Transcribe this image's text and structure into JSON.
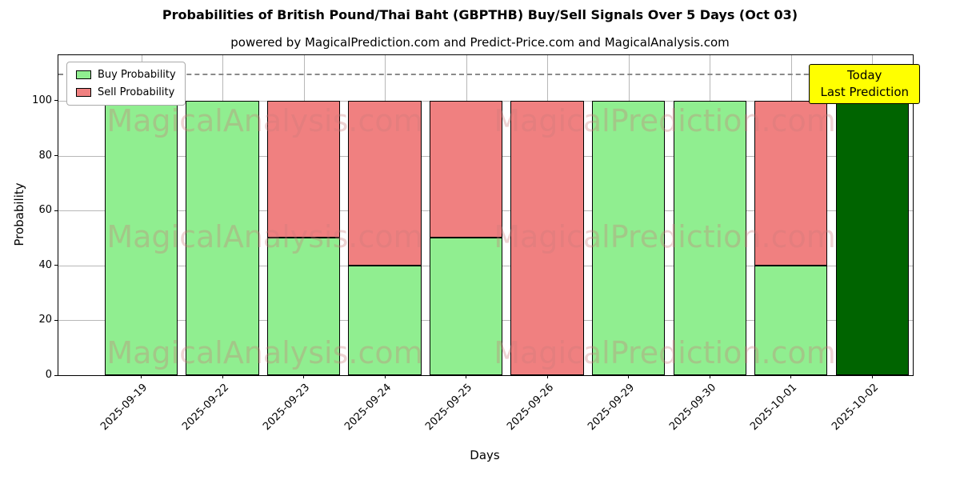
{
  "chart": {
    "title": "Probabilities of British Pound/Thai Baht (GBPTHB) Buy/Sell Signals Over 5 Days (Oct 03)",
    "subtitle": "powered by MagicalPrediction.com and Predict-Price.com and MagicalAnalysis.com",
    "xlabel": "Days",
    "ylabel": "Probability"
  },
  "chart_data": {
    "type": "bar",
    "stacked": true,
    "title": "Probabilities of British Pound/Thai Baht (GBPTHB) Buy/Sell Signals Over 5 Days (Oct 03)",
    "categories": [
      "2025-09-19",
      "2025-09-22",
      "2025-09-23",
      "2025-09-24",
      "2025-09-25",
      "2025-09-26",
      "2025-09-29",
      "2025-09-30",
      "2025-10-01",
      "2025-10-02"
    ],
    "series": [
      {
        "name": "Buy Probability",
        "color": "#90EE90",
        "values": [
          100,
          100,
          50,
          40,
          50,
          0,
          100,
          100,
          40,
          100
        ]
      },
      {
        "name": "Sell Probability",
        "color": "#F08080",
        "values": [
          0,
          0,
          50,
          60,
          50,
          100,
          0,
          0,
          60,
          0
        ]
      }
    ],
    "today_bar": {
      "index": 9,
      "color": "#006400"
    },
    "yticks": [
      0,
      20,
      40,
      60,
      80,
      100
    ],
    "ylim": [
      0,
      116.6
    ],
    "xlim": [
      -1.02,
      9.5
    ],
    "bar_width": 0.9,
    "threshold_line": {
      "y": 110,
      "style": "dashed",
      "color": "#8a8a8a"
    },
    "grid": true,
    "legend_position": "upper left",
    "xlabel": "Days",
    "ylabel": "Probability"
  },
  "legend": {
    "items": [
      {
        "label": "Buy Probability",
        "color": "#90EE90"
      },
      {
        "label": "Sell Probability",
        "color": "#F08080"
      }
    ]
  },
  "annotation": {
    "line1": "Today",
    "line2": "Last Prediction",
    "bg": "#FFFF00"
  },
  "watermarks": {
    "left_text": "MagicalAnalysis.com",
    "right_text": "MagicalPrediction.com",
    "color": "rgba(202,120,120,0.33)"
  }
}
